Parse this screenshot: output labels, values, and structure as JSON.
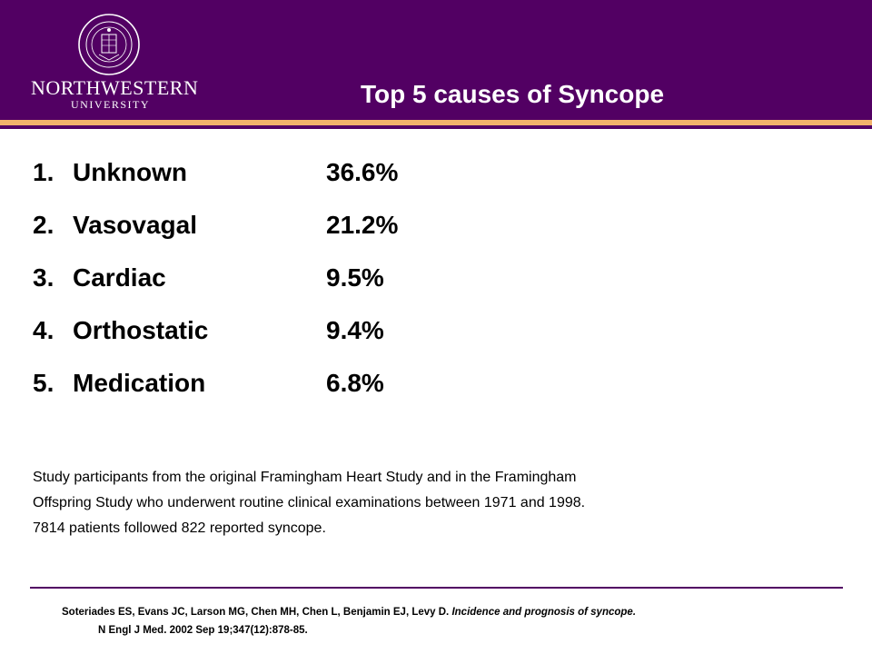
{
  "header": {
    "logo_main": "NORTHWESTERN",
    "logo_sub": "UNIVERSITY",
    "seal_icon": "university-seal-icon",
    "title": "Top 5 causes of Syncope"
  },
  "causes": [
    {
      "num": "1.",
      "name": "Unknown",
      "pct": "36.6%"
    },
    {
      "num": "2.",
      "name": "Vasovagal",
      "pct": "21.2%"
    },
    {
      "num": "3.",
      "name": "Cardiac",
      "pct": "9.5%"
    },
    {
      "num": "4.",
      "name": "Orthostatic",
      "pct": "9.4%"
    },
    {
      "num": "5.",
      "name": "Medication",
      "pct": "6.8%"
    }
  ],
  "study": {
    "line1": "Study participants from the original Framingham Heart Study and in the Framingham",
    "line2": "Offspring Study who underwent routine clinical examinations between 1971 and 1998.",
    "line3": "7814 patients followed 822 reported syncope."
  },
  "citation": {
    "authors": "Soteriades ES, Evans JC, Larson MG, Chen MH, Chen L, Benjamin EJ, Levy D.",
    "article_title": "Incidence and prognosis of syncope.",
    "journal": "N Engl J Med. 2002 Sep 19;347(12):878-85."
  },
  "colors": {
    "brand_purple": "#520063",
    "accent_stripe": "#f2b26b"
  }
}
